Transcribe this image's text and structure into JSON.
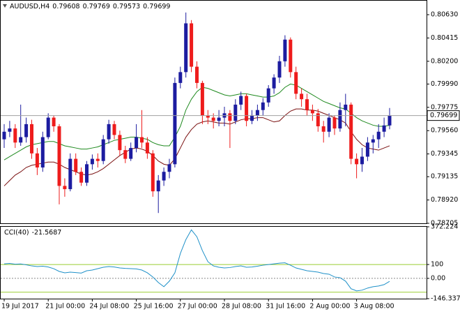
{
  "chart_data": [
    {
      "type": "candlestick",
      "title": "AUDUSD,H4",
      "categories": [
        "19 Jul 2017",
        null,
        null,
        null,
        null,
        null,
        null,
        null,
        "21 Jul 00:00",
        null,
        null,
        null,
        null,
        null,
        null,
        null,
        "24 Jul 08:00",
        null,
        null,
        null,
        null,
        null,
        null,
        null,
        "25 Jul 16:00",
        null,
        null,
        null,
        null,
        null,
        null,
        null,
        "27 Jul 00:00",
        null,
        null,
        null,
        null,
        null,
        null,
        null,
        "28 Jul 08:00",
        null,
        null,
        null,
        null,
        null,
        null,
        null,
        "31 Jul 16:00",
        null,
        null,
        null,
        null,
        null,
        null,
        null,
        "2 Aug 00:00",
        null,
        null,
        null,
        null,
        null,
        null,
        null,
        "3 Aug 08:00",
        null,
        null,
        null,
        null,
        null,
        null
      ],
      "open": [
        0.7948,
        0.7955,
        0.7958,
        0.7945,
        0.795,
        0.7962,
        0.7935,
        0.7922,
        0.795,
        0.7968,
        0.796,
        0.7905,
        0.7902,
        0.793,
        0.7918,
        0.7908,
        0.7925,
        0.793,
        0.7928,
        0.7948,
        0.7962,
        0.7952,
        0.7938,
        0.793,
        0.794,
        0.795,
        0.7945,
        0.7935,
        0.79,
        0.791,
        0.7918,
        0.7925,
        0.8,
        0.801,
        0.8055,
        0.8015,
        0.8,
        0.797,
        0.7968,
        0.7965,
        0.7968,
        0.7972,
        0.7965,
        0.798,
        0.7988,
        0.7965,
        0.797,
        0.7975,
        0.7982,
        0.7995,
        0.8005,
        0.802,
        0.804,
        0.801,
        0.799,
        0.7985,
        0.7975,
        0.7972,
        0.796,
        0.7955,
        0.7968,
        0.7958,
        0.7975,
        0.798,
        0.793,
        0.7925,
        0.7932,
        0.7945,
        0.7948,
        0.7955,
        0.79608
      ],
      "high": [
        0.7962,
        0.7965,
        0.7962,
        0.798,
        0.7968,
        0.7966,
        0.794,
        0.7955,
        0.7972,
        0.797,
        0.7962,
        0.7912,
        0.7935,
        0.7935,
        0.7922,
        0.7928,
        0.7934,
        0.7935,
        0.7952,
        0.7966,
        0.7965,
        0.7956,
        0.7942,
        0.7945,
        0.7962,
        0.7975,
        0.795,
        0.7938,
        0.7915,
        0.7922,
        0.793,
        0.8005,
        0.8015,
        0.8065,
        0.8058,
        0.802,
        0.8002,
        0.7975,
        0.7972,
        0.7975,
        0.7978,
        0.7975,
        0.7985,
        0.7992,
        0.799,
        0.7975,
        0.798,
        0.7986,
        0.7998,
        0.8008,
        0.8025,
        0.8044,
        0.8042,
        0.8015,
        0.7995,
        0.799,
        0.798,
        0.7976,
        0.7965,
        0.7972,
        0.797,
        0.7982,
        0.799,
        0.7982,
        0.7935,
        0.794,
        0.795,
        0.7952,
        0.7962,
        0.7968,
        0.79769
      ],
      "low": [
        0.794,
        0.795,
        0.794,
        0.7942,
        0.7945,
        0.793,
        0.7915,
        0.7918,
        0.7948,
        0.7955,
        0.7888,
        0.7895,
        0.79,
        0.7915,
        0.7905,
        0.7905,
        0.792,
        0.7922,
        0.7925,
        0.7944,
        0.7948,
        0.7933,
        0.7926,
        0.7928,
        0.7936,
        0.794,
        0.793,
        0.7895,
        0.788,
        0.7905,
        0.7912,
        0.7922,
        0.7995,
        0.8005,
        0.801,
        0.7995,
        0.7962,
        0.7962,
        0.7958,
        0.796,
        0.796,
        0.794,
        0.7962,
        0.7975,
        0.796,
        0.7962,
        0.7965,
        0.797,
        0.7978,
        0.799,
        0.8,
        0.8015,
        0.8005,
        0.7985,
        0.7978,
        0.797,
        0.7965,
        0.7955,
        0.7945,
        0.795,
        0.7952,
        0.7955,
        0.796,
        0.7925,
        0.7912,
        0.7918,
        0.7928,
        0.7935,
        0.794,
        0.795,
        0.79573
      ],
      "close": [
        0.7955,
        0.7958,
        0.7945,
        0.795,
        0.7962,
        0.7935,
        0.7922,
        0.795,
        0.7968,
        0.796,
        0.7905,
        0.7902,
        0.793,
        0.7918,
        0.7908,
        0.7925,
        0.793,
        0.7928,
        0.7948,
        0.7962,
        0.7952,
        0.7938,
        0.793,
        0.794,
        0.795,
        0.7945,
        0.7935,
        0.79,
        0.791,
        0.7918,
        0.7925,
        0.8,
        0.801,
        0.8055,
        0.8015,
        0.8,
        0.797,
        0.7968,
        0.7965,
        0.7968,
        0.7972,
        0.7965,
        0.798,
        0.7988,
        0.7965,
        0.797,
        0.7975,
        0.7982,
        0.7995,
        0.8005,
        0.802,
        0.804,
        0.801,
        0.799,
        0.7985,
        0.7975,
        0.7972,
        0.796,
        0.7955,
        0.7968,
        0.7958,
        0.7975,
        0.798,
        0.793,
        0.7925,
        0.7932,
        0.7945,
        0.7948,
        0.7955,
        0.79608,
        0.79699
      ],
      "up_color": "#1c1ca0",
      "down_color": "#ee1c1c",
      "series": [
        {
          "color": "#1f8a1f",
          "values": [
            0.7929,
            0.7932,
            0.7935,
            0.7938,
            0.7941,
            0.7943,
            0.7944,
            0.7945,
            0.7946,
            0.7946,
            0.7944,
            0.7942,
            0.7941,
            0.794,
            0.7939,
            0.7939,
            0.794,
            0.7941,
            0.7943,
            0.7945,
            0.7947,
            0.7948,
            0.7949,
            0.795,
            0.795,
            0.7949,
            0.7948,
            0.7945,
            0.7943,
            0.7942,
            0.7942,
            0.795,
            0.796,
            0.7975,
            0.7985,
            0.7992,
            0.7996,
            0.7995,
            0.7993,
            0.7991,
            0.7989,
            0.7988,
            0.7989,
            0.799,
            0.799,
            0.7989,
            0.7988,
            0.7987,
            0.7987,
            0.7988,
            0.7991,
            0.7996,
            0.7999,
            0.7998,
            0.7995,
            0.7992,
            0.7989,
            0.7986,
            0.7983,
            0.7981,
            0.7979,
            0.7977,
            0.7976,
            0.7972,
            0.7968,
            0.7965,
            0.7963,
            0.7961,
            0.796,
            0.796,
            0.7961
          ]
        },
        {
          "color": "#7a1010",
          "values": [
            0.7905,
            0.791,
            0.7915,
            0.7918,
            0.7922,
            0.7924,
            0.7925,
            0.7926,
            0.7927,
            0.7927,
            0.7925,
            0.7922,
            0.792,
            0.7918,
            0.7916,
            0.7915,
            0.7916,
            0.7918,
            0.7921,
            0.7925,
            0.7929,
            0.7933,
            0.7936,
            0.7939,
            0.794,
            0.7939,
            0.7937,
            0.7933,
            0.7928,
            0.7925,
            0.7924,
            0.793,
            0.794,
            0.795,
            0.7957,
            0.7962,
            0.7964,
            0.7965,
            0.7964,
            0.7963,
            0.7963,
            0.7962,
            0.7964,
            0.7966,
            0.7967,
            0.7967,
            0.7968,
            0.7968,
            0.7966,
            0.7964,
            0.7965,
            0.797,
            0.7974,
            0.7976,
            0.7976,
            0.7975,
            0.7975,
            0.7974,
            0.7972,
            0.797,
            0.7968,
            0.7966,
            0.7963,
            0.7955,
            0.7948,
            0.7943,
            0.794,
            0.7939,
            0.7938,
            0.794,
            0.7942
          ]
        }
      ],
      "ylim": [
        0.78705,
        0.80759
      ],
      "yticks": [
        {
          "value": 0.8063,
          "label": "0.80630"
        },
        0.80415,
        {
          "value": 0.802,
          "label": "0.80200"
        },
        {
          "value": 0.7999,
          "label": "0.79990"
        },
        0.79775,
        {
          "value": 0.7956,
          "label": "0.79560"
        },
        0.79345,
        0.79135,
        {
          "value": 0.7892,
          "label": "0.78920"
        },
        0.78705
      ],
      "last_price_line": true
    },
    {
      "type": "line",
      "title": "CCI(40)",
      "color": "#1e90c8",
      "values": [
        105,
        108,
        102,
        104,
        98,
        90,
        85,
        88,
        82,
        70,
        50,
        40,
        45,
        42,
        38,
        55,
        60,
        70,
        80,
        85,
        82,
        75,
        72,
        70,
        68,
        60,
        40,
        10,
        -30,
        -60,
        -20,
        40,
        180,
        280,
        350,
        300,
        200,
        120,
        90,
        80,
        75,
        78,
        85,
        90,
        80,
        82,
        88,
        95,
        100,
        105,
        110,
        112,
        95,
        75,
        65,
        55,
        50,
        45,
        35,
        30,
        10,
        5,
        -20,
        -75,
        -90,
        -85,
        -70,
        -60,
        -55,
        -45,
        -21.5687
      ],
      "levels": [
        100,
        -100
      ],
      "level_color": "#9acd32",
      "ylim": [
        -146.3373,
        372.224
      ],
      "yticks": [
        372.224,
        100,
        {
          "value": 0,
          "label": "0.00"
        },
        -146.3373
      ]
    }
  ]
}
